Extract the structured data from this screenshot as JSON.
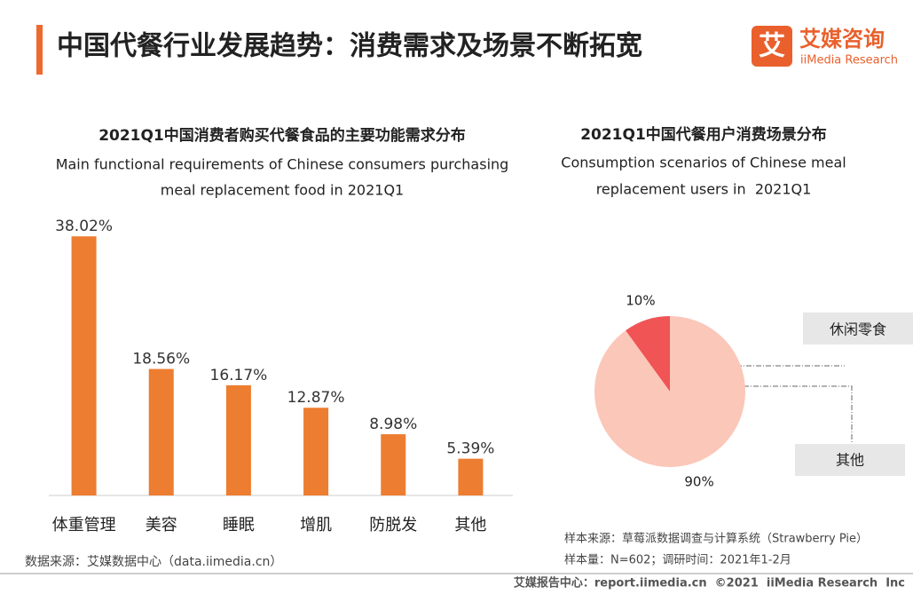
{
  "header": {
    "title": "中国代餐行业发展趋势：消费需求及场景不断拓宽",
    "logo_mark": "艾",
    "logo_name": "艾媒咨询",
    "logo_sub": "iiMedia Research"
  },
  "chart_data": [
    {
      "type": "bar",
      "title": "2021Q1中国消费者购买代餐食品的主要功能需求分布",
      "subtitle": [
        "Main functional requirements of Chinese consumers purchasing",
        "meal replacement food in 2021Q1"
      ],
      "categories": [
        "体重管理",
        "美容",
        "睡眠",
        "增肌",
        "防脱发",
        "其他"
      ],
      "values": [
        38.02,
        18.56,
        16.17,
        12.87,
        8.98,
        5.39
      ],
      "value_labels": [
        "38.02%",
        "18.56%",
        "16.17%",
        "12.87%",
        "8.98%",
        "5.39%"
      ],
      "color": "#ed7d31",
      "ylim": [
        0,
        40
      ]
    },
    {
      "type": "pie",
      "title": "2021Q1中国代餐用户消费场景分布",
      "subtitle": [
        "Consumption scenarios of Chinese meal",
        "replacement users in  2021Q1"
      ],
      "categories": [
        "休闲零食",
        "其他"
      ],
      "values": [
        10,
        90
      ],
      "value_labels": [
        "10%",
        "90%"
      ],
      "colors": [
        "#f05454",
        "#fbc7b9"
      ]
    }
  ],
  "notes": {
    "source_left": "数据来源：艾媒数据中心（data.iimedia.cn）",
    "sample_source": "样本来源：草莓派数据调查与计算系统（Strawberry Pie）",
    "sample_size": "样本量：N=602；调研时间：2021年1-2月"
  },
  "footer": {
    "text": "艾媒报告中心：report.iimedia.cn  ©2021  iiMedia Research  Inc"
  }
}
